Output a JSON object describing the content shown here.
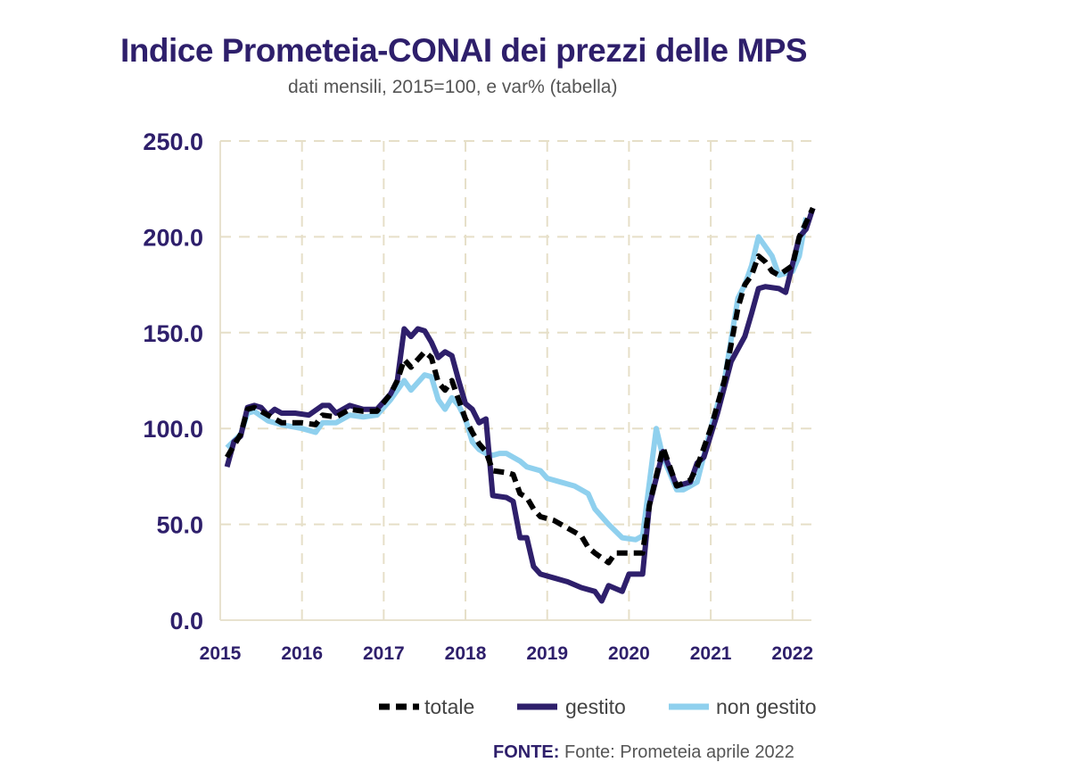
{
  "chart_data": {
    "type": "line",
    "title": "Indice Prometeia-CONAI dei prezzi delle MPS",
    "subtitle": "dati mensili, 2015=100, e var% (tabella)",
    "xlabel": "",
    "ylabel": "",
    "ylim": [
      0,
      250
    ],
    "yticks": [
      "0.0",
      "50.0",
      "100.0",
      "150.0",
      "200.0",
      "250.0"
    ],
    "xticks": [
      "2015",
      "2016",
      "2017",
      "2018",
      "2019",
      "2020",
      "2021",
      "2022"
    ],
    "grid": true,
    "legend_position": "bottom",
    "series": [
      {
        "name": "totale",
        "color": "#000000",
        "style": "dashed",
        "points": [
          [
            "2015-02",
            85
          ],
          [
            "2015-04",
            97
          ],
          [
            "2015-05",
            110
          ],
          [
            "2015-06",
            111
          ],
          [
            "2015-08",
            107
          ],
          [
            "2015-10",
            103
          ],
          [
            "2016-01",
            103
          ],
          [
            "2016-03",
            102
          ],
          [
            "2016-04",
            107
          ],
          [
            "2016-06",
            106
          ],
          [
            "2016-08",
            110
          ],
          [
            "2016-10",
            109
          ],
          [
            "2016-12",
            109
          ],
          [
            "2017-02",
            118
          ],
          [
            "2017-03",
            125
          ],
          [
            "2017-04",
            136
          ],
          [
            "2017-05",
            132
          ],
          [
            "2017-07",
            140
          ],
          [
            "2017-08",
            137
          ],
          [
            "2017-09",
            124
          ],
          [
            "2017-10",
            120
          ],
          [
            "2017-11",
            125
          ],
          [
            "2017-12",
            115
          ],
          [
            "2018-01",
            105
          ],
          [
            "2018-02",
            98
          ],
          [
            "2018-03",
            92
          ],
          [
            "2018-04",
            88
          ],
          [
            "2018-05",
            78
          ],
          [
            "2018-07",
            77
          ],
          [
            "2018-08",
            76
          ],
          [
            "2018-09",
            66
          ],
          [
            "2018-10",
            64
          ],
          [
            "2018-11",
            58
          ],
          [
            "2018-12",
            54
          ],
          [
            "2019-02",
            52
          ],
          [
            "2019-04",
            48
          ],
          [
            "2019-06",
            44
          ],
          [
            "2019-07",
            38
          ],
          [
            "2019-08",
            35
          ],
          [
            "2019-10",
            30
          ],
          [
            "2019-11",
            35
          ],
          [
            "2020-01",
            35
          ],
          [
            "2020-03",
            35
          ],
          [
            "2020-04",
            60
          ],
          [
            "2020-06",
            90
          ],
          [
            "2020-08",
            70
          ],
          [
            "2020-10",
            73
          ],
          [
            "2020-11",
            80
          ],
          [
            "2021-01",
            100
          ],
          [
            "2021-03",
            125
          ],
          [
            "2021-05",
            163
          ],
          [
            "2021-06",
            175
          ],
          [
            "2021-07",
            180
          ],
          [
            "2021-08",
            190
          ],
          [
            "2021-09",
            187
          ],
          [
            "2021-10",
            182
          ],
          [
            "2021-11",
            180
          ],
          [
            "2022-01",
            185
          ],
          [
            "2022-02",
            200
          ],
          [
            "2022-04",
            215
          ]
        ]
      },
      {
        "name": "gestito",
        "color": "#2e1f6b",
        "style": "solid",
        "points": [
          [
            "2015-02",
            80
          ],
          [
            "2015-03",
            93
          ],
          [
            "2015-04",
            96
          ],
          [
            "2015-05",
            111
          ],
          [
            "2015-06",
            112
          ],
          [
            "2015-07",
            111
          ],
          [
            "2015-08",
            107
          ],
          [
            "2015-09",
            110
          ],
          [
            "2015-10",
            108
          ],
          [
            "2015-12",
            108
          ],
          [
            "2016-02",
            107
          ],
          [
            "2016-04",
            112
          ],
          [
            "2016-05",
            112
          ],
          [
            "2016-06",
            108
          ],
          [
            "2016-08",
            112
          ],
          [
            "2016-10",
            110
          ],
          [
            "2016-12",
            110
          ],
          [
            "2017-02",
            118
          ],
          [
            "2017-03",
            125
          ],
          [
            "2017-04",
            152
          ],
          [
            "2017-05",
            148
          ],
          [
            "2017-06",
            152
          ],
          [
            "2017-07",
            151
          ],
          [
            "2017-08",
            145
          ],
          [
            "2017-09",
            137
          ],
          [
            "2017-10",
            140
          ],
          [
            "2017-11",
            138
          ],
          [
            "2017-12",
            125
          ],
          [
            "2018-01",
            113
          ],
          [
            "2018-02",
            110
          ],
          [
            "2018-03",
            103
          ],
          [
            "2018-04",
            105
          ],
          [
            "2018-05",
            65
          ],
          [
            "2018-07",
            64
          ],
          [
            "2018-08",
            62
          ],
          [
            "2018-09",
            43
          ],
          [
            "2018-10",
            43
          ],
          [
            "2018-11",
            28
          ],
          [
            "2018-12",
            24
          ],
          [
            "2019-02",
            22
          ],
          [
            "2019-04",
            20
          ],
          [
            "2019-06",
            17
          ],
          [
            "2019-08",
            15
          ],
          [
            "2019-09",
            10
          ],
          [
            "2019-10",
            18
          ],
          [
            "2019-12",
            15
          ],
          [
            "2020-01",
            24
          ],
          [
            "2020-03",
            24
          ],
          [
            "2020-04",
            60
          ],
          [
            "2020-06",
            88
          ],
          [
            "2020-08",
            70
          ],
          [
            "2020-09",
            71
          ],
          [
            "2020-10",
            72
          ],
          [
            "2020-11",
            82
          ],
          [
            "2020-12",
            85
          ],
          [
            "2021-02",
            108
          ],
          [
            "2021-04",
            135
          ],
          [
            "2021-06",
            148
          ],
          [
            "2021-07",
            160
          ],
          [
            "2021-08",
            173
          ],
          [
            "2021-09",
            174
          ],
          [
            "2021-11",
            173
          ],
          [
            "2021-12",
            171
          ],
          [
            "2022-02",
            200
          ],
          [
            "2022-03",
            204
          ],
          [
            "2022-04",
            215
          ]
        ]
      },
      {
        "name": "non gestito",
        "color": "#8fd0ee",
        "style": "solid",
        "points": [
          [
            "2015-02",
            90
          ],
          [
            "2015-04",
            97
          ],
          [
            "2015-05",
            108
          ],
          [
            "2015-06",
            109
          ],
          [
            "2015-08",
            104
          ],
          [
            "2015-10",
            102
          ],
          [
            "2016-01",
            100
          ],
          [
            "2016-03",
            98
          ],
          [
            "2016-04",
            103
          ],
          [
            "2016-06",
            103
          ],
          [
            "2016-08",
            107
          ],
          [
            "2016-10",
            106
          ],
          [
            "2016-12",
            107
          ],
          [
            "2017-02",
            115
          ],
          [
            "2017-04",
            125
          ],
          [
            "2017-05",
            120
          ],
          [
            "2017-07",
            128
          ],
          [
            "2017-08",
            127
          ],
          [
            "2017-09",
            115
          ],
          [
            "2017-10",
            110
          ],
          [
            "2017-11",
            116
          ],
          [
            "2017-12",
            112
          ],
          [
            "2018-01",
            105
          ],
          [
            "2018-02",
            93
          ],
          [
            "2018-03",
            89
          ],
          [
            "2018-04",
            87
          ],
          [
            "2018-05",
            86
          ],
          [
            "2018-06",
            87
          ],
          [
            "2018-07",
            87
          ],
          [
            "2018-09",
            83
          ],
          [
            "2018-10",
            80
          ],
          [
            "2018-12",
            78
          ],
          [
            "2019-01",
            74
          ],
          [
            "2019-03",
            72
          ],
          [
            "2019-05",
            70
          ],
          [
            "2019-06",
            68
          ],
          [
            "2019-07",
            66
          ],
          [
            "2019-08",
            58
          ],
          [
            "2019-10",
            50
          ],
          [
            "2019-12",
            43
          ],
          [
            "2020-02",
            42
          ],
          [
            "2020-03",
            44
          ],
          [
            "2020-05",
            100
          ],
          [
            "2020-06",
            85
          ],
          [
            "2020-08",
            68
          ],
          [
            "2020-09",
            68
          ],
          [
            "2020-10",
            70
          ],
          [
            "2020-11",
            72
          ],
          [
            "2021-01",
            100
          ],
          [
            "2021-03",
            125
          ],
          [
            "2021-05",
            168
          ],
          [
            "2021-06",
            175
          ],
          [
            "2021-07",
            185
          ],
          [
            "2021-08",
            200
          ],
          [
            "2021-09",
            195
          ],
          [
            "2021-10",
            190
          ],
          [
            "2021-11",
            180
          ],
          [
            "2022-01",
            182
          ],
          [
            "2022-02",
            190
          ],
          [
            "2022-03",
            210
          ]
        ]
      }
    ]
  },
  "source": {
    "label": "FONTE:",
    "text": "Fonte: Prometeia aprile 2022"
  }
}
